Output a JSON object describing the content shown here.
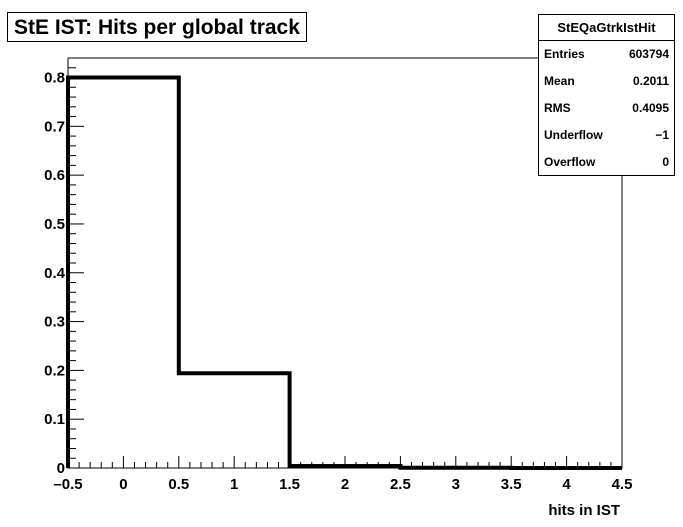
{
  "title": "StE IST: Hits per global track",
  "stats": {
    "name": "StEQaGtrkIstHit",
    "rows": [
      {
        "label": "Entries",
        "value": "603794"
      },
      {
        "label": "Mean",
        "value": "0.2011"
      },
      {
        "label": "RMS",
        "value": "0.4095"
      },
      {
        "label": "Underflow",
        "value": "−1"
      },
      {
        "label": "Overflow",
        "value": "0"
      }
    ]
  },
  "chart_data": {
    "type": "histogram",
    "title": "StE IST: Hits per global track",
    "xlabel": "hits in IST",
    "ylabel": "",
    "xlim": [
      -0.5,
      4.5
    ],
    "ylim": [
      0,
      0.84
    ],
    "bin_edges": [
      -0.5,
      0.5,
      1.5,
      2.5,
      3.5,
      4.5
    ],
    "values": [
      0.8,
      0.194,
      0.004,
      0.0005,
      0.0
    ],
    "x_ticks": [
      "-0.5",
      "0",
      "0.5",
      "1",
      "1.5",
      "2",
      "2.5",
      "3",
      "3.5",
      "4",
      "4.5"
    ],
    "y_ticks": [
      "0",
      "0.1",
      "0.2",
      "0.3",
      "0.4",
      "0.5",
      "0.6",
      "0.7",
      "0.8"
    ],
    "grid": false,
    "line_color": "#000000"
  }
}
